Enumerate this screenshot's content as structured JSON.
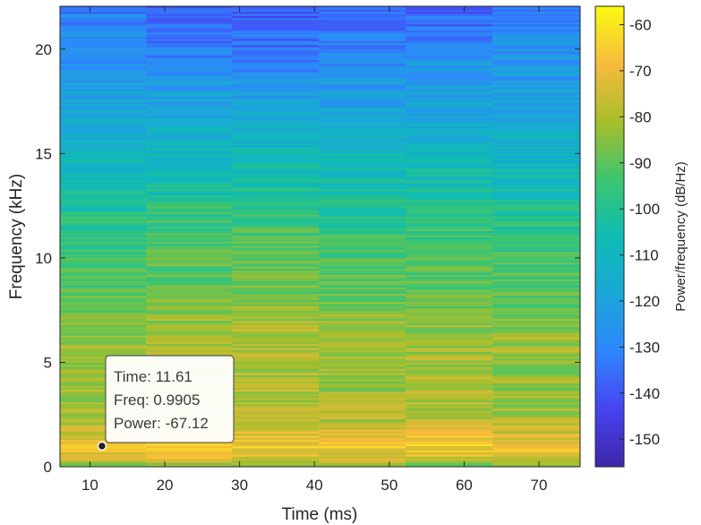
{
  "chart_data": {
    "type": "heatmap",
    "title": "",
    "xlabel": "Time (ms)",
    "ylabel": "Frequency (kHz)",
    "xlim": [
      6,
      75.5
    ],
    "ylim": [
      0,
      22.05
    ],
    "x_ticks": [
      10,
      20,
      30,
      40,
      50,
      60,
      70
    ],
    "y_ticks": [
      0,
      5,
      10,
      15,
      20
    ],
    "time_segments_ms": [
      [
        6,
        17.5
      ],
      [
        17.5,
        29
      ],
      [
        29,
        40.6
      ],
      [
        40.6,
        52.2
      ],
      [
        52.2,
        63.8
      ],
      [
        63.8,
        75.5
      ]
    ],
    "frequency_resolution_khz": 0.1,
    "power_profile": {
      "description_unit": "dB/Hz",
      "frequency_khz": [
        0,
        0.5,
        1.0,
        1.6,
        2.5,
        4,
        6,
        8,
        10,
        12,
        14,
        16,
        18,
        20,
        22.05
      ],
      "segments": [
        [
          -90,
          -74,
          -68,
          -76,
          -82,
          -84,
          -82,
          -90,
          -95,
          -100,
          -108,
          -114,
          -122,
          -128,
          -132
        ],
        [
          -88,
          -72,
          -66,
          -74,
          -80,
          -80,
          -80,
          -88,
          -92,
          -96,
          -106,
          -112,
          -122,
          -132,
          -142
        ],
        [
          -88,
          -72,
          -66,
          -74,
          -80,
          -80,
          -78,
          -86,
          -90,
          -96,
          -106,
          -114,
          -124,
          -134,
          -140
        ],
        [
          -88,
          -72,
          -66,
          -74,
          -80,
          -82,
          -80,
          -88,
          -92,
          -98,
          -106,
          -114,
          -124,
          -130,
          -136
        ],
        [
          -88,
          -72,
          -66,
          -74,
          -80,
          -82,
          -82,
          -88,
          -92,
          -98,
          -106,
          -114,
          -122,
          -130,
          -138
        ],
        [
          -90,
          -74,
          -68,
          -76,
          -82,
          -84,
          -82,
          -90,
          -94,
          -100,
          -108,
          -114,
          -122,
          -128,
          -132
        ]
      ]
    },
    "colorbar": {
      "label": "Power/frequency (dB/Hz)",
      "colormap": "parula",
      "limits": [
        -156,
        -56
      ],
      "ticks": [
        -60,
        -70,
        -80,
        -90,
        -100,
        -110,
        -120,
        -130,
        -140,
        -150
      ]
    },
    "datatip": {
      "time_label": "Time: 11.61",
      "freq_label": "Freq: 0.9905",
      "power_label": "Power: -67.12",
      "time": 11.61,
      "freq": 0.9905,
      "power": -67.12
    }
  }
}
